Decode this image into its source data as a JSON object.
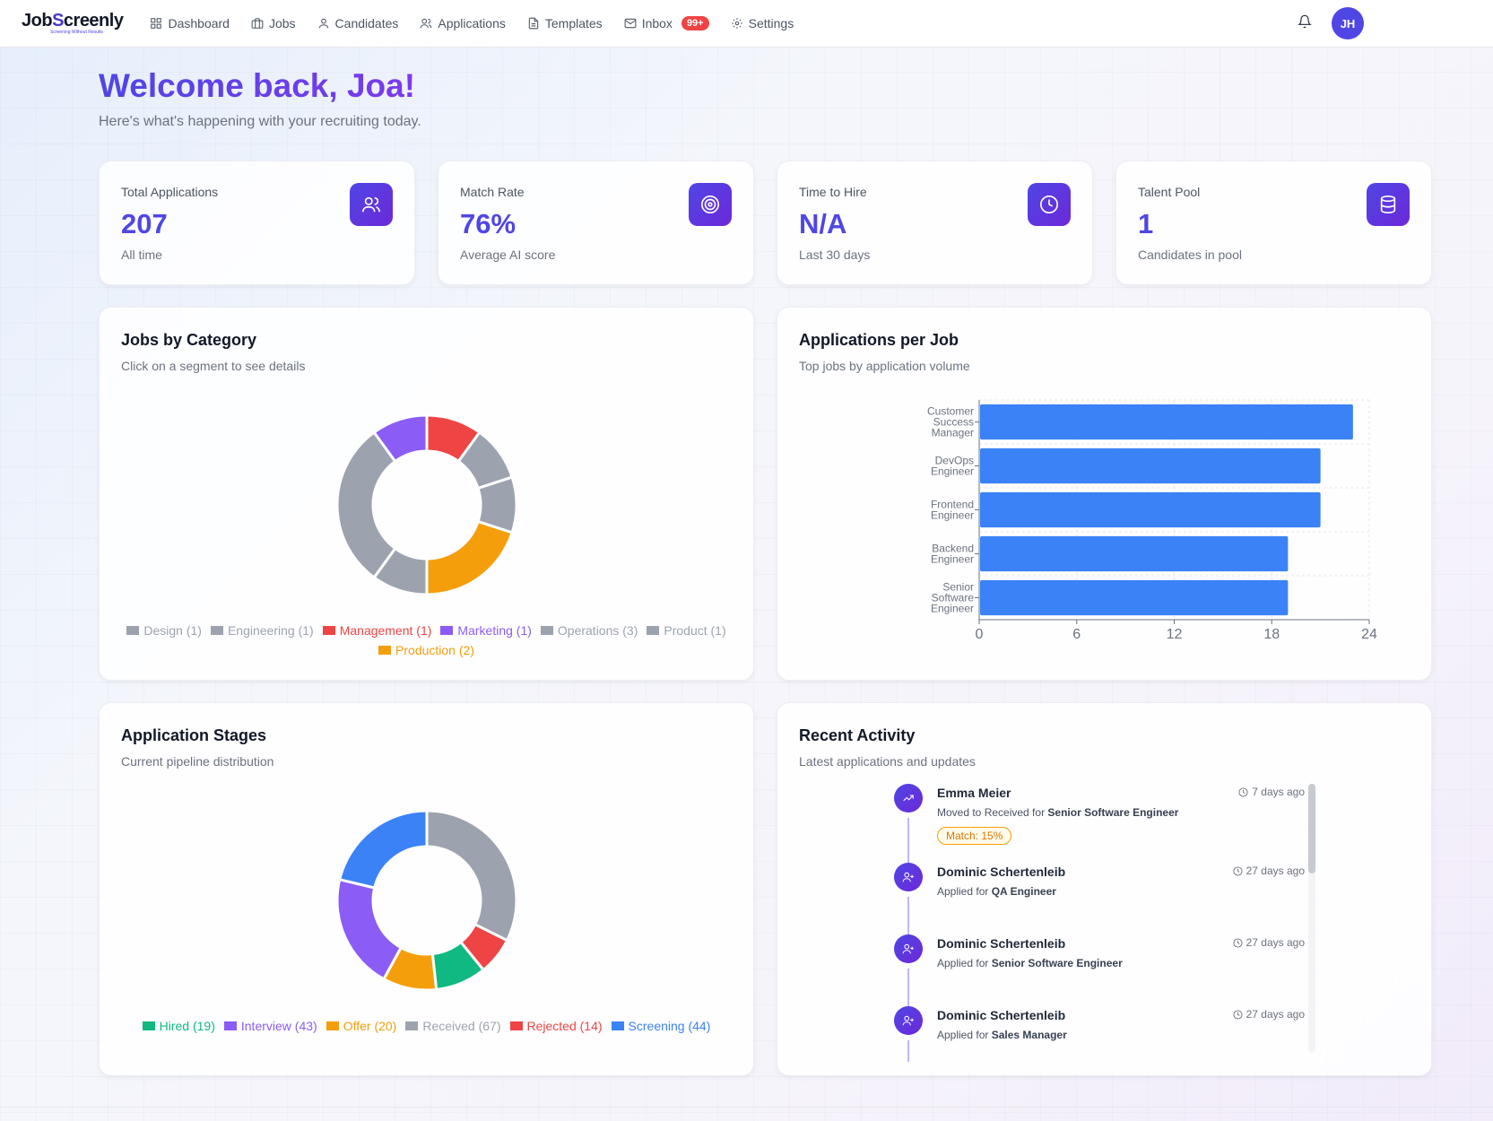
{
  "brand": {
    "logo_prefix": "Job",
    "logo_s": "S",
    "logo_suffix": "creenly",
    "tagline": "Screening Without Results"
  },
  "nav": {
    "items": [
      {
        "label": "Dashboard",
        "icon": "grid-icon"
      },
      {
        "label": "Jobs",
        "icon": "briefcase-icon"
      },
      {
        "label": "Candidates",
        "icon": "user-icon"
      },
      {
        "label": "Applications",
        "icon": "users-icon"
      },
      {
        "label": "Templates",
        "icon": "document-icon"
      },
      {
        "label": "Inbox",
        "icon": "mail-icon",
        "badge": "99+"
      },
      {
        "label": "Settings",
        "icon": "gear-icon"
      }
    ],
    "avatar": "JH"
  },
  "welcome": {
    "title": "Welcome back, Joa!",
    "subtitle": "Here's what's happening with your recruiting today."
  },
  "stats": [
    {
      "label": "Total Applications",
      "value": "207",
      "sub": "All time",
      "icon": "users-icon"
    },
    {
      "label": "Match Rate",
      "value": "76%",
      "sub": "Average AI score",
      "icon": "target-icon"
    },
    {
      "label": "Time to Hire",
      "value": "N/A",
      "sub": "Last 30 days",
      "icon": "clock-icon"
    },
    {
      "label": "Talent Pool",
      "value": "1",
      "sub": "Candidates in pool",
      "icon": "database-icon"
    }
  ],
  "jobs_by_category": {
    "title": "Jobs by Category",
    "subtitle": "Click on a segment to see details"
  },
  "applications_per_job": {
    "title": "Applications per Job",
    "subtitle": "Top jobs by application volume"
  },
  "application_stages": {
    "title": "Application Stages",
    "subtitle": "Current pipeline distribution"
  },
  "recent_activity": {
    "title": "Recent Activity",
    "subtitle": "Latest applications and updates",
    "items": [
      {
        "name": "Emma Meier",
        "prefix": "Moved to Received for ",
        "job": "Senior Software Engineer",
        "time": "7 days ago",
        "match": "Match: 15%",
        "icon": "trending-up-icon"
      },
      {
        "name": "Dominic Schertenleib",
        "prefix": "Applied for ",
        "job": "QA Engineer",
        "time": "27 days ago",
        "icon": "user-plus-icon"
      },
      {
        "name": "Dominic Schertenleib",
        "prefix": "Applied for ",
        "job": "Senior Software Engineer",
        "time": "27 days ago",
        "icon": "user-plus-icon"
      },
      {
        "name": "Dominic Schertenleib",
        "prefix": "Applied for ",
        "job": "Sales Manager",
        "time": "27 days ago",
        "icon": "user-plus-icon"
      }
    ]
  },
  "chart_data": [
    {
      "type": "pie",
      "categories": [
        "Design",
        "Engineering",
        "Management",
        "Marketing",
        "Operations",
        "Product",
        "Production"
      ],
      "values": [
        1,
        1,
        1,
        1,
        3,
        1,
        2
      ],
      "legend_labels": [
        "Design (1)",
        "Engineering (1)",
        "Management (1)",
        "Marketing (1)",
        "Operations (3)",
        "Product (1)",
        "Production (2)"
      ],
      "colors": [
        "#9ca3af",
        "#9ca3af",
        "#ef4444",
        "#8b5cf6",
        "#9ca3af",
        "#9ca3af",
        "#f59e0b"
      ],
      "legend_text_colors": [
        "#9ca3af",
        "#9ca3af",
        "#ef4444",
        "#8b5cf6",
        "#9ca3af",
        "#9ca3af",
        "#f59e0b"
      ],
      "ring_order": [
        "Management",
        "Design",
        "Engineering",
        "Production",
        "Product",
        "Operations",
        "Marketing"
      ],
      "legend": "bottom"
    },
    {
      "type": "bar",
      "orientation": "horizontal",
      "categories": [
        "Customer Success Manager",
        "DevOps Engineer",
        "Frontend Engineer",
        "Backend Engineer",
        "Senior Software Engineer"
      ],
      "category_lines": [
        [
          "Customer",
          "Success",
          "Manager"
        ],
        [
          "DevOps",
          "Engineer"
        ],
        [
          "Frontend",
          "Engineer"
        ],
        [
          "Backend",
          "Engineer"
        ],
        [
          "Senior",
          "Software",
          "Engineer"
        ]
      ],
      "values": [
        23,
        21,
        21,
        19,
        19
      ],
      "xlim": [
        0,
        24
      ],
      "xticks": [
        "0",
        "6",
        "12",
        "18",
        "24"
      ],
      "grid": true,
      "color": "#3b82f6"
    },
    {
      "type": "pie",
      "categories": [
        "Hired",
        "Interview",
        "Offer",
        "Received",
        "Rejected",
        "Screening"
      ],
      "values": [
        19,
        43,
        20,
        67,
        14,
        44
      ],
      "legend_labels": [
        "Hired (19)",
        "Interview (43)",
        "Offer (20)",
        "Received (67)",
        "Rejected (14)",
        "Screening (44)"
      ],
      "colors": [
        "#10b981",
        "#8b5cf6",
        "#f59e0b",
        "#9ca3af",
        "#ef4444",
        "#3b82f6"
      ],
      "legend_text_colors": [
        "#10b981",
        "#8b5cf6",
        "#f59e0b",
        "#9ca3af",
        "#ef4444",
        "#3b82f6"
      ],
      "ring_order": [
        "Received",
        "Rejected",
        "Hired",
        "Offer",
        "Interview",
        "Screening"
      ],
      "legend": "bottom"
    }
  ]
}
